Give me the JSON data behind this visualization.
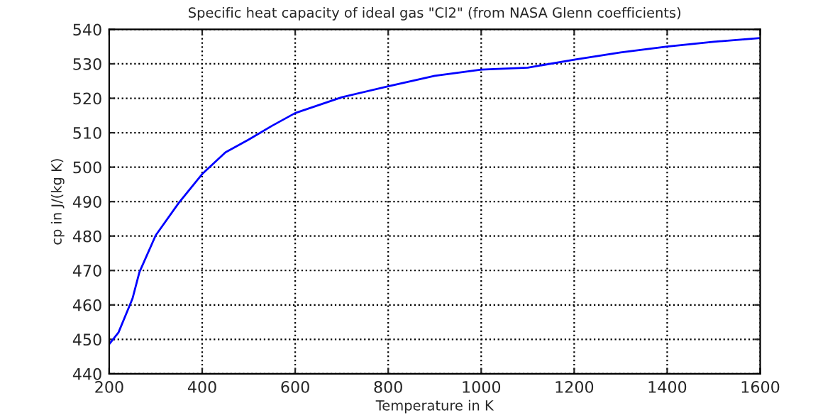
{
  "chart_data": {
    "type": "line",
    "title": "Specific heat capacity of ideal gas \"Cl2\" (from NASA Glenn coefficients)",
    "xlabel": "Temperature in K",
    "ylabel": "cp in J/(kg K)",
    "series": [
      {
        "color": "#0000ff",
        "x": [
          200,
          220,
          250,
          265,
          300,
          350,
          400,
          450,
          500,
          550,
          600,
          700,
          800,
          900,
          1000,
          1100,
          1200,
          1300,
          1400,
          1500,
          1600
        ],
        "values": [
          448.6,
          452,
          461.8,
          469.5,
          480.2,
          489.7,
          498,
          504.3,
          508,
          512,
          515.7,
          520.3,
          523.5,
          526.5,
          528.3,
          528.9,
          531.2,
          533.3,
          535,
          536.4,
          537.5
        ]
      }
    ],
    "xlim": [
      200,
      1600
    ],
    "ylim": [
      440,
      540
    ],
    "xticks": [
      200,
      400,
      600,
      800,
      1000,
      1200,
      1400,
      1600
    ],
    "yticks": [
      440,
      450,
      460,
      470,
      480,
      490,
      500,
      510,
      520,
      530,
      540
    ],
    "grid": true,
    "line_style": "solid",
    "marker": "none"
  }
}
